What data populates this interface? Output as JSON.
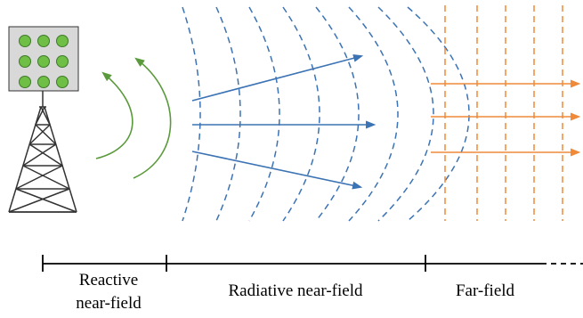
{
  "colors": {
    "reactive": "#5a9a3c",
    "radiative": "#3c73b4",
    "far": "#ef8a3a",
    "line": "#000000",
    "antenna_fill": "#d8d8d8",
    "antenna_dot": "#6fbf47"
  },
  "labels": {
    "reactive_line1": "Reactive",
    "reactive_line2": "near-field",
    "radiative": "Radiative near-field",
    "far": "Far-field"
  }
}
